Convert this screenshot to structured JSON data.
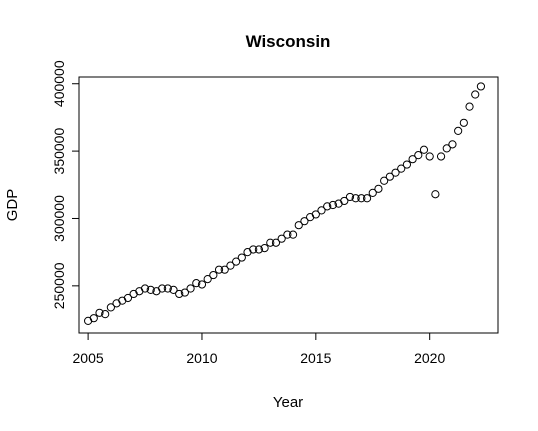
{
  "chart_data": {
    "type": "scatter",
    "title": "Wisconsin",
    "xlabel": "Year",
    "ylabel": "GDP",
    "xlim": [
      2004.6,
      2023.0
    ],
    "ylim": [
      215000,
      405000
    ],
    "x_ticks": [
      2005,
      2010,
      2015,
      2020
    ],
    "y_ticks": [
      250000,
      300000,
      350000,
      400000
    ],
    "grid": false,
    "legend": "none",
    "marker": "open-circle",
    "x": [
      2005.0,
      2005.25,
      2005.5,
      2005.75,
      2006.0,
      2006.25,
      2006.5,
      2006.75,
      2007.0,
      2007.25,
      2007.5,
      2007.75,
      2008.0,
      2008.25,
      2008.5,
      2008.75,
      2009.0,
      2009.25,
      2009.5,
      2009.75,
      2010.0,
      2010.25,
      2010.5,
      2010.75,
      2011.0,
      2011.25,
      2011.5,
      2011.75,
      2012.0,
      2012.25,
      2012.5,
      2012.75,
      2013.0,
      2013.25,
      2013.5,
      2013.75,
      2014.0,
      2014.25,
      2014.5,
      2014.75,
      2015.0,
      2015.25,
      2015.5,
      2015.75,
      2016.0,
      2016.25,
      2016.5,
      2016.75,
      2017.0,
      2017.25,
      2017.5,
      2017.75,
      2018.0,
      2018.25,
      2018.5,
      2018.75,
      2019.0,
      2019.25,
      2019.5,
      2019.75,
      2020.0,
      2020.25,
      2020.5,
      2020.75,
      2021.0,
      2021.25,
      2021.5,
      2021.75,
      2022.0,
      2022.25
    ],
    "y": [
      224000,
      226000,
      230000,
      229000,
      234000,
      237000,
      239000,
      241000,
      244000,
      246000,
      248000,
      247000,
      246000,
      248000,
      248000,
      247000,
      244000,
      245000,
      248000,
      252000,
      251000,
      255000,
      258000,
      262000,
      262000,
      265000,
      268000,
      271000,
      275000,
      277000,
      277000,
      278000,
      282000,
      282000,
      285000,
      288000,
      288000,
      295000,
      298000,
      301000,
      303000,
      306000,
      309000,
      310000,
      311000,
      313000,
      316000,
      315000,
      315000,
      315000,
      319000,
      322000,
      328000,
      331000,
      334000,
      337000,
      340000,
      344000,
      347000,
      351000,
      346000,
      318000,
      346000,
      352000,
      355000,
      365000,
      371000,
      383000,
      392000,
      398000
    ]
  }
}
